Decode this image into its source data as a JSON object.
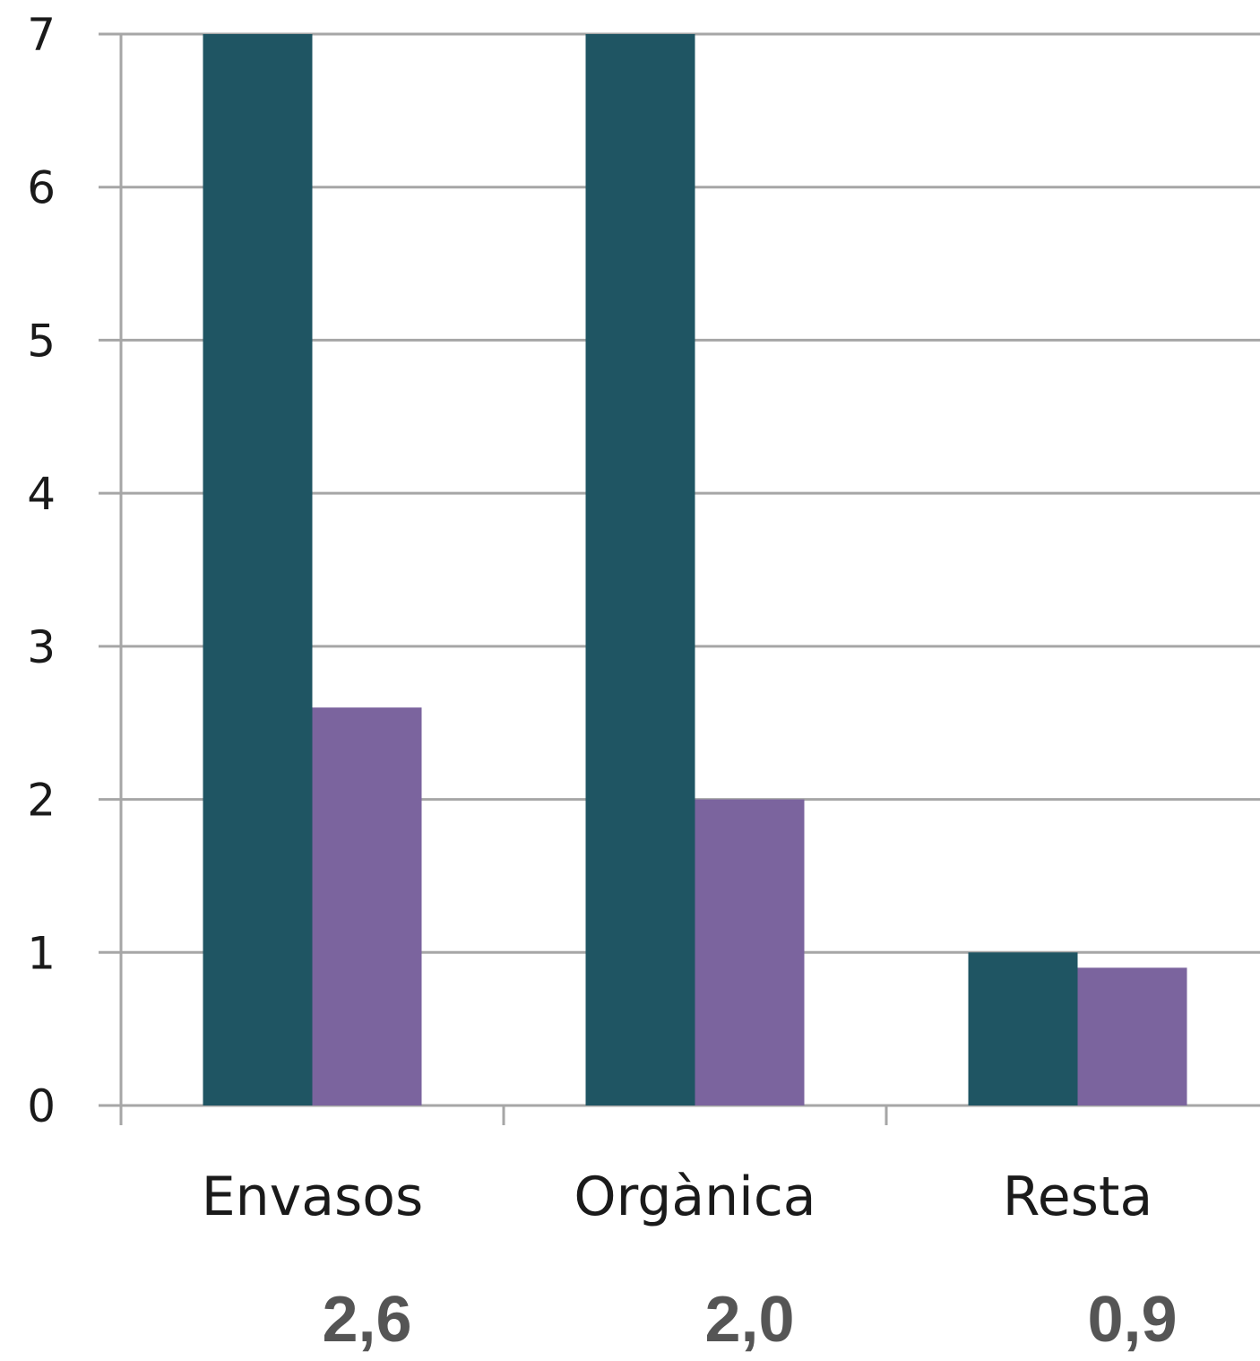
{
  "chart_data": {
    "type": "bar",
    "categories": [
      "Envasos",
      "Orgànica",
      "Resta"
    ],
    "series": [
      {
        "color": "#1F5563",
        "values": [
          7,
          7,
          1
        ]
      },
      {
        "color": "#7B649E",
        "values": [
          2.6,
          2.0,
          0.9
        ]
      }
    ],
    "ylim": [
      0,
      7
    ],
    "yticks": [
      "0",
      "1",
      "2",
      "3",
      "4",
      "5",
      "6",
      "7"
    ],
    "grid": true,
    "legend": "none",
    "below_labels": [
      "2,6",
      "2,0",
      "0,9"
    ]
  },
  "colors": {
    "grid": "#A6A6A6",
    "axis_text": "#1a1a1a",
    "below_text": "#555555"
  }
}
